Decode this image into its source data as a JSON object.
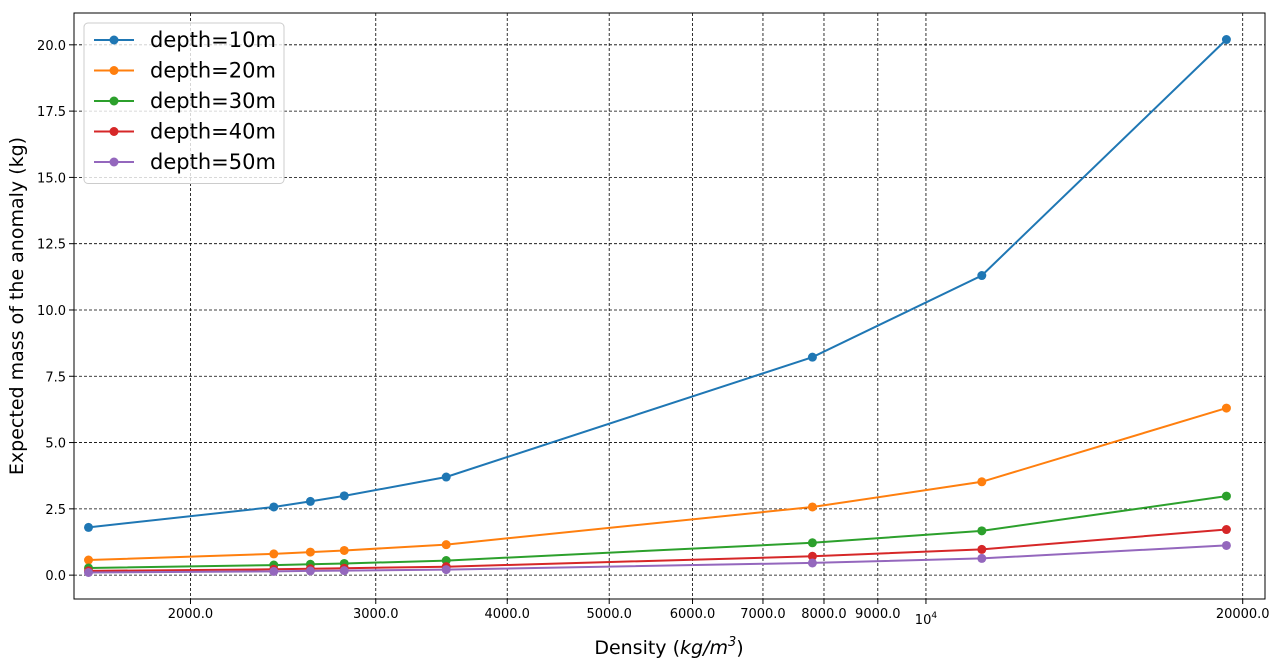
{
  "chart_data": {
    "type": "line",
    "title": "",
    "xlabel": "Density (",
    "xlabel_math": "kg/m",
    "xlabel_exp": "3",
    "xlabel_end": ")",
    "ylabel": "Expected mass of the anomaly (kg)",
    "x_scale": "log",
    "xlim": [
      1550,
      21000
    ],
    "ylim": [
      -0.9,
      21.2
    ],
    "grid": true,
    "legend_position": "upper-left",
    "x_ticks": [
      {
        "value": 2000,
        "label": "2000.0"
      },
      {
        "value": 3000,
        "label": "3000.0"
      },
      {
        "value": 4000,
        "label": "4000.0"
      },
      {
        "value": 5000,
        "label": "5000.0"
      },
      {
        "value": 6000,
        "label": "6000.0"
      },
      {
        "value": 7000,
        "label": "7000.0"
      },
      {
        "value": 8000,
        "label": "8000.0"
      },
      {
        "value": 9000,
        "label": "9000.0"
      },
      {
        "value": 10000,
        "label": "10",
        "exp": "4"
      },
      {
        "value": 20000,
        "label": "20000.0"
      }
    ],
    "y_ticks": [
      {
        "value": 0,
        "label": "0.0"
      },
      {
        "value": 2.5,
        "label": "2.5"
      },
      {
        "value": 5,
        "label": "5.0"
      },
      {
        "value": 7.5,
        "label": "7.5"
      },
      {
        "value": 10,
        "label": "10.0"
      },
      {
        "value": 12.5,
        "label": "12.5"
      },
      {
        "value": 15,
        "label": "15.0"
      },
      {
        "value": 17.5,
        "label": "17.5"
      },
      {
        "value": 20,
        "label": "20.0"
      }
    ],
    "x": [
      1600,
      2400,
      2600,
      2800,
      3500,
      7800,
      11300,
      19300
    ],
    "series": [
      {
        "name": "depth=10m",
        "color": "#1f77b4",
        "values": [
          1.8,
          2.57,
          2.78,
          2.99,
          3.7,
          8.22,
          11.3,
          20.2
        ]
      },
      {
        "name": "depth=20m",
        "color": "#ff7f0e",
        "values": [
          0.57,
          0.8,
          0.87,
          0.93,
          1.15,
          2.57,
          3.52,
          6.3
        ]
      },
      {
        "name": "depth=30m",
        "color": "#2ca02c",
        "values": [
          0.27,
          0.38,
          0.41,
          0.44,
          0.55,
          1.22,
          1.67,
          2.98
        ]
      },
      {
        "name": "depth=40m",
        "color": "#d62728",
        "values": [
          0.16,
          0.22,
          0.24,
          0.26,
          0.32,
          0.71,
          0.97,
          1.72
        ]
      },
      {
        "name": "depth=50m",
        "color": "#9467bd",
        "values": [
          0.1,
          0.14,
          0.16,
          0.17,
          0.21,
          0.46,
          0.63,
          1.12
        ]
      }
    ]
  }
}
